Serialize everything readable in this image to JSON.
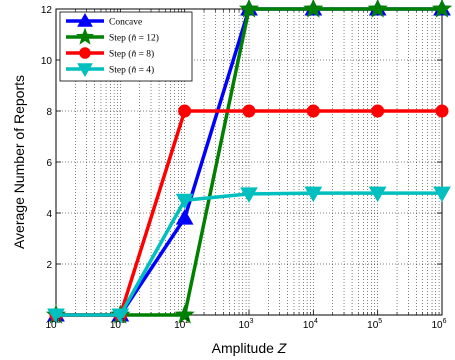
{
  "chart_data": {
    "type": "line",
    "xlabel": "Amplitude",
    "xlabel_var": "Z",
    "ylabel": "Average Number of Reports",
    "xscale": "log",
    "x": [
      1,
      10,
      100,
      1000,
      10000,
      100000,
      1000000
    ],
    "x_tick_labels": [
      {
        "base": "10",
        "exp": "0"
      },
      {
        "base": "10",
        "exp": "1"
      },
      {
        "base": "10",
        "exp": "2"
      },
      {
        "base": "10",
        "exp": "3"
      },
      {
        "base": "10",
        "exp": "4"
      },
      {
        "base": "10",
        "exp": "5"
      },
      {
        "base": "10",
        "exp": "6"
      }
    ],
    "xlim": [
      1,
      1000000
    ],
    "ylim": [
      0,
      12
    ],
    "y_ticks": [
      2,
      4,
      6,
      8,
      10,
      12
    ],
    "grid": true,
    "legend_position": "top-left",
    "series": [
      {
        "name": "Concave",
        "color": "#0000ff",
        "marker": "triangle-up",
        "x": [
          1,
          10,
          100,
          1000,
          10000,
          100000,
          1000000
        ],
        "y": [
          0,
          0,
          3.8,
          12,
          12,
          12,
          12
        ]
      },
      {
        "name": "Step (n̂ = 12)",
        "name_main": "Step (",
        "name_var": "n̂",
        "name_rest": " = 12)",
        "color": "#008000",
        "marker": "star",
        "x": [
          1,
          10,
          100,
          1000,
          10000,
          100000,
          1000000
        ],
        "y": [
          0,
          0,
          0,
          12,
          12,
          12,
          12
        ]
      },
      {
        "name": "Step (n̂ = 8)",
        "name_main": "Step (",
        "name_var": "n̂",
        "name_rest": " = 8)",
        "color": "#ff0000",
        "marker": "circle",
        "x": [
          1,
          10,
          100,
          1000,
          10000,
          100000,
          1000000
        ],
        "y": [
          0,
          0,
          8,
          8,
          8,
          8,
          8
        ]
      },
      {
        "name": "Step (n̂ = 4)",
        "name_main": "Step (",
        "name_var": "n̂",
        "name_rest": " = 4)",
        "color": "#00bfbf",
        "marker": "triangle-down",
        "x": [
          1,
          10,
          100,
          1000,
          10000,
          100000,
          1000000
        ],
        "y": [
          0,
          0,
          4.5,
          4.75,
          4.78,
          4.78,
          4.78
        ]
      }
    ]
  }
}
